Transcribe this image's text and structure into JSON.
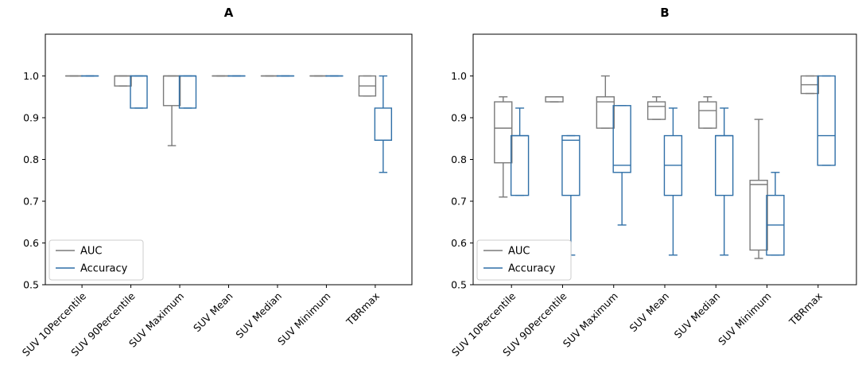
{
  "colors": {
    "auc": "#7a7a7a",
    "accuracy": "#2f6fa7"
  },
  "chart_data": [
    {
      "type": "boxplot",
      "title": "A",
      "categories": [
        "SUV 10Percentile",
        "SUV 90Percentile",
        "SUV Maximum",
        "SUV Mean",
        "SUV Median",
        "SUV Minimum",
        "TBRmax"
      ],
      "ylim": [
        0.5,
        1.1
      ],
      "yticks": [
        "0.5",
        "0.6",
        "0.7",
        "0.8",
        "0.9",
        "1.0"
      ],
      "xlabel": "",
      "ylabel": "",
      "legend": {
        "position": "lower-left",
        "entries": [
          "AUC",
          "Accuracy"
        ]
      },
      "series": [
        {
          "name": "AUC",
          "boxes": [
            {
              "whisker_low": 1.0,
              "q1": 1.0,
              "median": 1.0,
              "q3": 1.0,
              "whisker_high": 1.0
            },
            {
              "whisker_low": 0.976,
              "q1": 0.976,
              "median": 1.0,
              "q3": 1.0,
              "whisker_high": 1.0
            },
            {
              "whisker_low": 0.833,
              "q1": 0.929,
              "median": 1.0,
              "q3": 1.0,
              "whisker_high": 1.0
            },
            {
              "whisker_low": 1.0,
              "q1": 1.0,
              "median": 1.0,
              "q3": 1.0,
              "whisker_high": 1.0
            },
            {
              "whisker_low": 1.0,
              "q1": 1.0,
              "median": 1.0,
              "q3": 1.0,
              "whisker_high": 1.0
            },
            {
              "whisker_low": 1.0,
              "q1": 1.0,
              "median": 1.0,
              "q3": 1.0,
              "whisker_high": 1.0
            },
            {
              "whisker_low": 0.952,
              "q1": 0.952,
              "median": 0.976,
              "q3": 1.0,
              "whisker_high": 1.0
            }
          ]
        },
        {
          "name": "Accuracy",
          "boxes": [
            {
              "whisker_low": 1.0,
              "q1": 1.0,
              "median": 1.0,
              "q3": 1.0,
              "whisker_high": 1.0
            },
            {
              "whisker_low": 0.923,
              "q1": 0.923,
              "median": 1.0,
              "q3": 1.0,
              "whisker_high": 1.0
            },
            {
              "whisker_low": 0.923,
              "q1": 0.923,
              "median": 1.0,
              "q3": 1.0,
              "whisker_high": 1.0
            },
            {
              "whisker_low": 1.0,
              "q1": 1.0,
              "median": 1.0,
              "q3": 1.0,
              "whisker_high": 1.0
            },
            {
              "whisker_low": 1.0,
              "q1": 1.0,
              "median": 1.0,
              "q3": 1.0,
              "whisker_high": 1.0
            },
            {
              "whisker_low": 1.0,
              "q1": 1.0,
              "median": 1.0,
              "q3": 1.0,
              "whisker_high": 1.0
            },
            {
              "whisker_low": 0.769,
              "q1": 0.846,
              "median": 0.846,
              "q3": 0.923,
              "whisker_high": 1.0
            }
          ]
        }
      ]
    },
    {
      "type": "boxplot",
      "title": "B",
      "categories": [
        "SUV 10Percentile",
        "SUV 90Percentile",
        "SUV Maximum",
        "SUV Mean",
        "SUV Median",
        "SUV Minimum",
        "TBRmax"
      ],
      "ylim": [
        0.5,
        1.1
      ],
      "yticks": [
        "0.5",
        "0.6",
        "0.7",
        "0.8",
        "0.9",
        "1.0"
      ],
      "xlabel": "",
      "ylabel": "",
      "legend": {
        "position": "lower-left",
        "entries": [
          "AUC",
          "Accuracy"
        ]
      },
      "series": [
        {
          "name": "AUC",
          "boxes": [
            {
              "whisker_low": 0.71,
              "q1": 0.792,
              "median": 0.875,
              "q3": 0.938,
              "whisker_high": 0.95
            },
            {
              "whisker_low": 0.938,
              "q1": 0.938,
              "median": 0.95,
              "q3": 0.95,
              "whisker_high": 0.95
            },
            {
              "whisker_low": 0.875,
              "q1": 0.875,
              "median": 0.938,
              "q3": 0.95,
              "whisker_high": 1.0
            },
            {
              "whisker_low": 0.896,
              "q1": 0.896,
              "median": 0.927,
              "q3": 0.938,
              "whisker_high": 0.95
            },
            {
              "whisker_low": 0.875,
              "q1": 0.875,
              "median": 0.917,
              "q3": 0.938,
              "whisker_high": 0.95
            },
            {
              "whisker_low": 0.563,
              "q1": 0.583,
              "median": 0.74,
              "q3": 0.75,
              "whisker_high": 0.896
            },
            {
              "whisker_low": 0.958,
              "q1": 0.958,
              "median": 0.979,
              "q3": 1.0,
              "whisker_high": 1.0
            }
          ]
        },
        {
          "name": "Accuracy",
          "boxes": [
            {
              "whisker_low": 0.714,
              "q1": 0.714,
              "median": 0.857,
              "q3": 0.857,
              "whisker_high": 0.923
            },
            {
              "whisker_low": 0.571,
              "q1": 0.714,
              "median": 0.846,
              "q3": 0.857,
              "whisker_high": 0.857
            },
            {
              "whisker_low": 0.643,
              "q1": 0.769,
              "median": 0.786,
              "q3": 0.929,
              "whisker_high": 0.929
            },
            {
              "whisker_low": 0.571,
              "q1": 0.714,
              "median": 0.786,
              "q3": 0.857,
              "whisker_high": 0.923
            },
            {
              "whisker_low": 0.571,
              "q1": 0.714,
              "median": 0.857,
              "q3": 0.857,
              "whisker_high": 0.923
            },
            {
              "whisker_low": 0.571,
              "q1": 0.571,
              "median": 0.643,
              "q3": 0.714,
              "whisker_high": 0.769
            },
            {
              "whisker_low": 0.786,
              "q1": 0.786,
              "median": 0.857,
              "q3": 1.0,
              "whisker_high": 1.0
            }
          ]
        }
      ]
    }
  ]
}
